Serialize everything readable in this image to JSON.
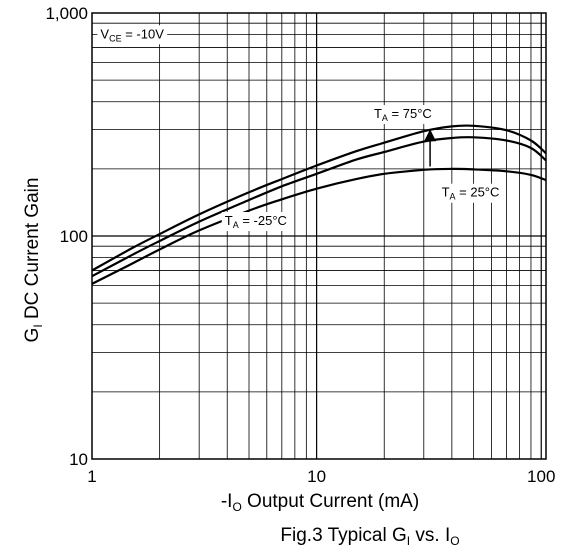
{
  "chart_data": {
    "type": "line",
    "title": "",
    "caption": {
      "prefix": "Fig.3 Typical G",
      "sub1": "I",
      "middle": " vs. I",
      "sub2": "O"
    },
    "xlabel": {
      "prefix": "-I",
      "sub": "O",
      "rest": " Output Current (mA)"
    },
    "ylabel": {
      "prefix": "G",
      "sub": "I",
      "rest": " DC Current Gain"
    },
    "x_scale": "log",
    "y_scale": "log",
    "xlim": [
      1,
      105
    ],
    "ylim": [
      10,
      1000
    ],
    "x_ticks": [
      {
        "value": 1,
        "label": "1"
      },
      {
        "value": 10,
        "label": "10"
      },
      {
        "value": 100,
        "label": "100"
      }
    ],
    "y_ticks": [
      {
        "value": 10,
        "label": "10"
      },
      {
        "value": 100,
        "label": "100"
      },
      {
        "value": 1000,
        "label": "1,000"
      }
    ],
    "grid": true,
    "condition": {
      "prefix": "V",
      "sub": "CE",
      "rest": " = -10V"
    },
    "series": [
      {
        "name": {
          "prefix": "T",
          "sub": "A",
          "rest": " = 75°C"
        },
        "x": [
          1,
          1.5,
          2,
          3,
          5,
          7,
          10,
          15,
          20,
          30,
          40,
          50,
          70,
          90,
          105
        ],
        "y": [
          70,
          88,
          102,
          125,
          157,
          180,
          207,
          240,
          262,
          295,
          310,
          312,
          298,
          268,
          235
        ]
      },
      {
        "name": {
          "prefix": "T",
          "sub": "A",
          "rest": " = 25°C"
        },
        "x": [
          1,
          1.5,
          2,
          3,
          5,
          7,
          10,
          15,
          20,
          30,
          40,
          50,
          70,
          90,
          105
        ],
        "y": [
          66,
          82,
          95,
          116,
          145,
          167,
          190,
          220,
          238,
          265,
          275,
          277,
          268,
          248,
          218
        ]
      },
      {
        "name": {
          "prefix": "T",
          "sub": "A",
          "rest": " = -25°C"
        },
        "x": [
          1,
          1.5,
          2,
          3,
          5,
          7,
          10,
          15,
          20,
          30,
          40,
          50,
          70,
          90,
          105
        ],
        "y": [
          61,
          75,
          87,
          106,
          130,
          146,
          163,
          180,
          190,
          198,
          200,
          199,
          195,
          188,
          178
        ]
      }
    ]
  }
}
